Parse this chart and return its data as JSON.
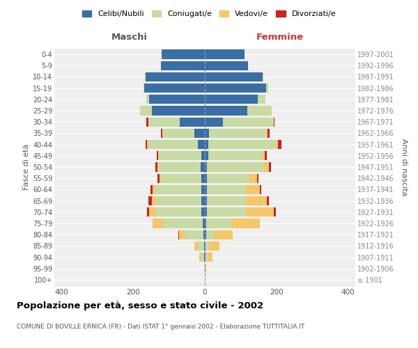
{
  "age_groups": [
    "100+",
    "95-99",
    "90-94",
    "85-89",
    "80-84",
    "75-79",
    "70-74",
    "65-69",
    "60-64",
    "55-59",
    "50-54",
    "45-49",
    "40-44",
    "35-39",
    "30-34",
    "25-29",
    "20-24",
    "15-19",
    "10-14",
    "5-9",
    "0-4"
  ],
  "birth_years": [
    "≤ 1901",
    "1902-1906",
    "1907-1911",
    "1912-1916",
    "1917-1921",
    "1922-1926",
    "1927-1931",
    "1932-1936",
    "1937-1941",
    "1942-1946",
    "1947-1951",
    "1952-1956",
    "1957-1961",
    "1962-1966",
    "1967-1971",
    "1972-1976",
    "1977-1981",
    "1982-1986",
    "1987-1991",
    "1992-1996",
    "1997-2001"
  ],
  "males_celibi": [
    0,
    0,
    2,
    2,
    4,
    5,
    10,
    10,
    10,
    10,
    12,
    10,
    20,
    30,
    70,
    148,
    155,
    170,
    165,
    122,
    120
  ],
  "males_coniugati": [
    0,
    1,
    8,
    18,
    52,
    112,
    128,
    128,
    128,
    112,
    118,
    118,
    138,
    88,
    88,
    32,
    8,
    2,
    2,
    0,
    0
  ],
  "males_vedovi": [
    0,
    0,
    5,
    10,
    15,
    28,
    18,
    10,
    8,
    5,
    3,
    2,
    3,
    0,
    0,
    0,
    0,
    0,
    0,
    0,
    0
  ],
  "males_divorziati": [
    0,
    0,
    0,
    0,
    2,
    0,
    5,
    10,
    5,
    5,
    5,
    5,
    5,
    5,
    5,
    0,
    0,
    0,
    0,
    0,
    0
  ],
  "females_nubili": [
    0,
    0,
    2,
    2,
    3,
    3,
    5,
    5,
    5,
    5,
    5,
    10,
    10,
    12,
    50,
    118,
    148,
    172,
    162,
    120,
    110
  ],
  "females_coniugate": [
    0,
    1,
    5,
    10,
    22,
    72,
    110,
    110,
    110,
    118,
    160,
    150,
    190,
    160,
    140,
    68,
    22,
    4,
    2,
    0,
    0
  ],
  "females_vedove": [
    0,
    2,
    15,
    28,
    52,
    78,
    78,
    58,
    38,
    22,
    14,
    8,
    5,
    3,
    2,
    0,
    0,
    0,
    0,
    0,
    0
  ],
  "females_divorziate": [
    0,
    0,
    0,
    0,
    0,
    0,
    5,
    5,
    5,
    5,
    5,
    5,
    8,
    5,
    3,
    0,
    0,
    0,
    0,
    0,
    0
  ],
  "color_celibi": "#3a6ea5",
  "color_coniugati": "#c8dba4",
  "color_vedovi": "#f5c76a",
  "color_divorziati": "#cc2222",
  "color_bg": "#efefef",
  "xlim": 420,
  "title": "Popolazione per età, sesso e stato civile - 2002",
  "subtitle": "COMUNE DI BOVILLE ERNICA (FR) - Dati ISTAT 1° gennaio 2002 - Elaborazione TUTTITALIA.IT",
  "ylabel_left": "Fasce di età",
  "ylabel_right": "Anni di nascita",
  "label_maschi": "Maschi",
  "label_femmine": "Femmine",
  "legend_labels": [
    "Celibi/Nubili",
    "Coniugati/e",
    "Vedovi/e",
    "Divorziati/e"
  ]
}
